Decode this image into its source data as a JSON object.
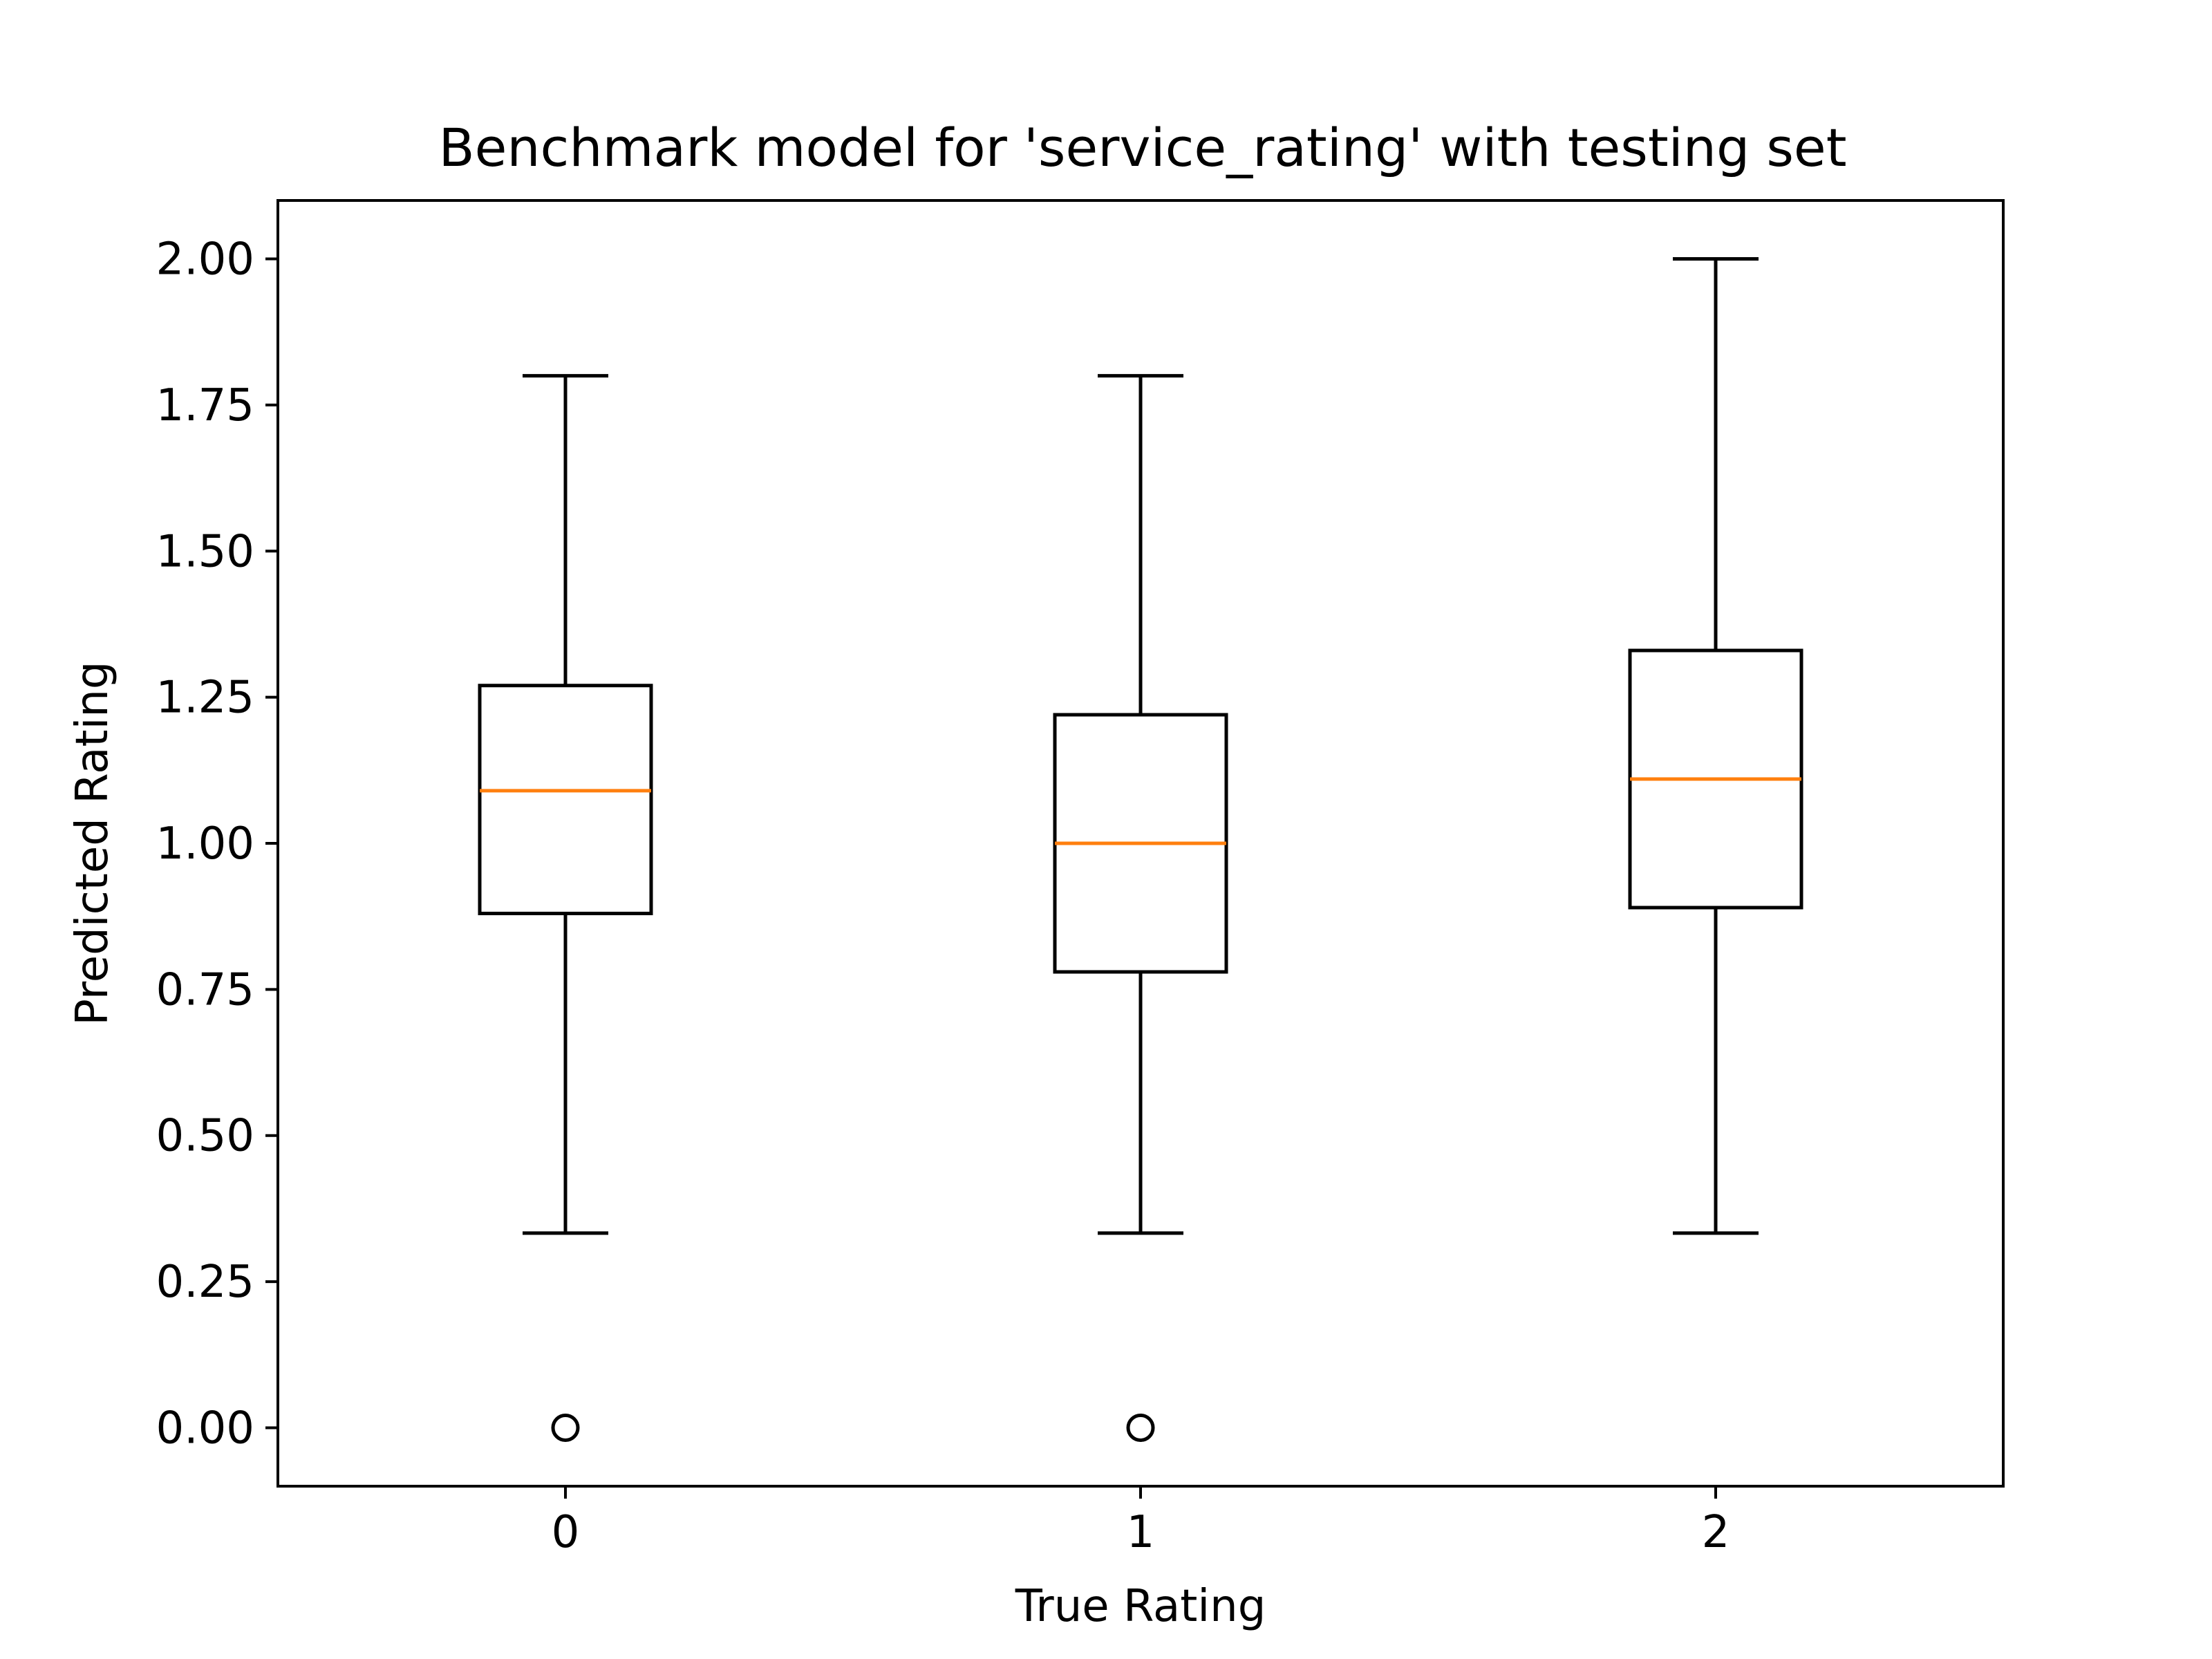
{
  "chart_data": {
    "type": "box",
    "title": "Benchmark model for 'service_rating' with testing set",
    "xlabel": "True Rating",
    "ylabel": "Predicted Rating",
    "categories": [
      "0",
      "1",
      "2"
    ],
    "x_ticks": [
      "0",
      "1",
      "2"
    ],
    "y_ticks": [
      "0.00",
      "0.25",
      "0.50",
      "0.75",
      "1.00",
      "1.25",
      "1.50",
      "1.75",
      "2.00"
    ],
    "ylim": [
      -0.1,
      2.1
    ],
    "xlim": [
      -0.5,
      2.5
    ],
    "grid": false,
    "boxes": [
      {
        "category": "0",
        "whisker_low": 0.333,
        "q1": 0.88,
        "median": 1.09,
        "q3": 1.27,
        "whisker_high": 1.8,
        "outliers": [
          0.0
        ]
      },
      {
        "category": "1",
        "whisker_low": 0.333,
        "q1": 0.78,
        "median": 1.0,
        "q3": 1.22,
        "whisker_high": 1.8,
        "outliers": [
          0.0
        ]
      },
      {
        "category": "2",
        "whisker_low": 0.333,
        "q1": 0.89,
        "median": 1.11,
        "q3": 1.33,
        "whisker_high": 2.0,
        "outliers": []
      }
    ],
    "colors": {
      "box": "#000000",
      "median": "#ff7f0e",
      "outlier": "#000000"
    }
  }
}
